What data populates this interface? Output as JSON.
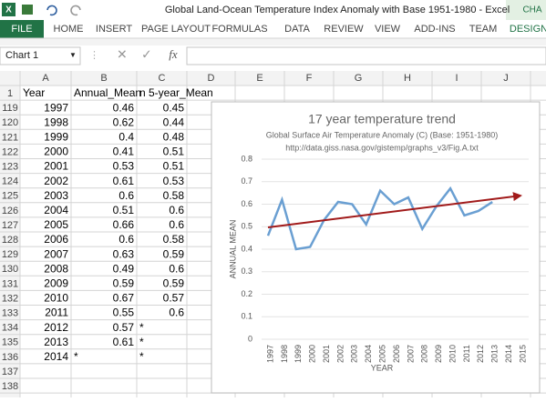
{
  "window": {
    "title": "Global Land-Ocean Temperature Index Anomaly with Base 1951-1980 - Excel",
    "context_tab": "CHA"
  },
  "ribbon": {
    "file": "FILE",
    "tabs": [
      "HOME",
      "INSERT",
      "PAGE LAYOUT",
      "FORMULAS",
      "DATA",
      "REVIEW",
      "VIEW",
      "ADD-INS",
      "TEAM"
    ],
    "context": "DESIGN"
  },
  "formula_bar": {
    "name_box": "Chart 1",
    "fx": "fx"
  },
  "columns": [
    "A",
    "B",
    "C",
    "D",
    "E",
    "F",
    "G",
    "H",
    "I",
    "J"
  ],
  "header_row": {
    "number": 1,
    "cells": [
      "Year",
      "Annual_Mean",
      "n 5-year_Mean"
    ]
  },
  "rows": [
    {
      "number": 119,
      "cells": [
        1997,
        0.46,
        0.45
      ]
    },
    {
      "number": 120,
      "cells": [
        1998,
        0.62,
        0.44
      ]
    },
    {
      "number": 121,
      "cells": [
        1999,
        0.4,
        0.48
      ]
    },
    {
      "number": 122,
      "cells": [
        2000,
        0.41,
        0.51
      ]
    },
    {
      "number": 123,
      "cells": [
        2001,
        0.53,
        0.51
      ]
    },
    {
      "number": 124,
      "cells": [
        2002,
        0.61,
        0.53
      ]
    },
    {
      "number": 125,
      "cells": [
        2003,
        0.6,
        0.58
      ]
    },
    {
      "number": 126,
      "cells": [
        2004,
        0.51,
        0.6
      ]
    },
    {
      "number": 127,
      "cells": [
        2005,
        0.66,
        0.6
      ]
    },
    {
      "number": 128,
      "cells": [
        2006,
        0.6,
        0.58
      ]
    },
    {
      "number": 129,
      "cells": [
        2007,
        0.63,
        0.59
      ]
    },
    {
      "number": 130,
      "cells": [
        2008,
        0.49,
        0.6
      ]
    },
    {
      "number": 131,
      "cells": [
        2009,
        0.59,
        0.59
      ]
    },
    {
      "number": 132,
      "cells": [
        2010,
        0.67,
        0.57
      ]
    },
    {
      "number": 133,
      "cells": [
        2011,
        0.55,
        0.6
      ]
    },
    {
      "number": 134,
      "cells": [
        2012,
        0.57,
        "*"
      ]
    },
    {
      "number": 135,
      "cells": [
        2013,
        0.61,
        "*"
      ]
    },
    {
      "number": 136,
      "cells": [
        2014,
        "*",
        "*"
      ]
    },
    {
      "number": 137,
      "cells": []
    },
    {
      "number": 138,
      "cells": []
    }
  ],
  "chart": {
    "type": "line",
    "title": "17 year temperature trend",
    "subtitle": "Global Surface Air Temperature Anomaly (C) (Base: 1951-1980)",
    "source": "http://data.giss.nasa.gov/gistemp/graphs_v3/Fig.A.txt",
    "x_label": "YEAR",
    "y_label": "ANNUAL MEAN",
    "categories": [
      "1997",
      "1998",
      "1999",
      "2000",
      "2001",
      "2002",
      "2003",
      "2004",
      "2005",
      "2006",
      "2007",
      "2008",
      "2009",
      "2010",
      "2011",
      "2012",
      "2013",
      "2014",
      "2015"
    ],
    "series": [
      {
        "color": "#6a9fd2",
        "values": [
          0.46,
          0.62,
          0.4,
          0.41,
          0.53,
          0.61,
          0.6,
          0.51,
          0.66,
          0.6,
          0.63,
          0.49,
          0.59,
          0.67,
          0.55,
          0.57,
          0.61,
          null,
          null
        ]
      }
    ],
    "trendline": {
      "color": "#a11a1a",
      "start": 0.497,
      "end": 0.638
    },
    "ylim": [
      0,
      0.8
    ],
    "yticks": [
      0,
      0.1,
      0.2,
      0.3,
      0.4,
      0.5,
      0.6,
      0.7,
      0.8
    ],
    "grid": true
  }
}
